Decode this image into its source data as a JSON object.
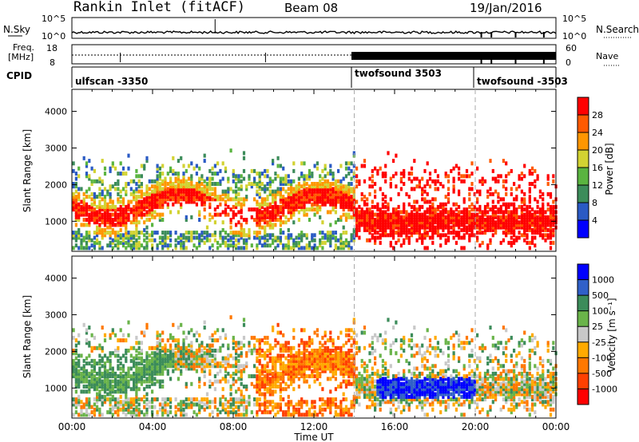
{
  "header": {
    "station": "Rankin Inlet (fitACF)",
    "beam": "Beam 08",
    "date": "19/Jan/2016"
  },
  "summary": {
    "nsky_label": "N.Sky",
    "nsearch_label": "N.Search",
    "freq_label_1": "Freq.",
    "freq_label_2": "[MHz]",
    "nave_label": "Nave",
    "cpid_label": "CPID",
    "noise_ticks": [
      "10^5",
      "10^0"
    ],
    "freq_ticks": [
      "18",
      "8"
    ],
    "nave_ticks": [
      "60",
      "0"
    ],
    "cpid_segments": [
      {
        "label": "ulfscan -3350",
        "start": 0
      },
      {
        "label": "twofsound 3503",
        "start": 14
      },
      {
        "label": "twofsound -3503",
        "start": 20
      }
    ]
  },
  "chart_data": [
    {
      "type": "heatmap",
      "name": "power-panel",
      "xlabel": "Time UT",
      "ylabel": "Slant Range [km]",
      "xlim": [
        0,
        24
      ],
      "ylim": [
        180,
        4600
      ],
      "x_ticks": [
        "00:00",
        "04:00",
        "08:00",
        "12:00",
        "16:00",
        "20:00",
        "00:00"
      ],
      "y_ticks": [
        1000,
        2000,
        3000,
        4000
      ],
      "colorbar_label": "Power [dB]",
      "colorbar_ticks": [
        "4",
        "8",
        "12",
        "16",
        "20",
        "24",
        "28"
      ],
      "colorbar_range": [
        0,
        30
      ],
      "colors": [
        "#0000ff",
        "#2a5ac4",
        "#3c8c5a",
        "#5ab440",
        "#d2d232",
        "#ff9600",
        "#ff5a00",
        "#ff0000"
      ]
    },
    {
      "type": "heatmap",
      "name": "velocity-panel",
      "xlabel": "Time UT",
      "ylabel": "Slant Range [km]",
      "xlim": [
        0,
        24
      ],
      "ylim": [
        180,
        4600
      ],
      "x_ticks": [
        "00:00",
        "04:00",
        "08:00",
        "12:00",
        "16:00",
        "20:00",
        "00:00"
      ],
      "y_ticks": [
        1000,
        2000,
        3000,
        4000
      ],
      "colorbar_label": "Velocity [m s⁻¹]",
      "colorbar_ticks": [
        "1000",
        "500",
        "100",
        "25",
        "-25",
        "-100",
        "-500",
        "-1000"
      ],
      "colors": [
        "#0000ff",
        "#3060c8",
        "#3c8c5a",
        "#6ab44a",
        "#c8c8c8",
        "#ffaa00",
        "#ff7800",
        "#ff4000",
        "#ff0000"
      ]
    }
  ]
}
